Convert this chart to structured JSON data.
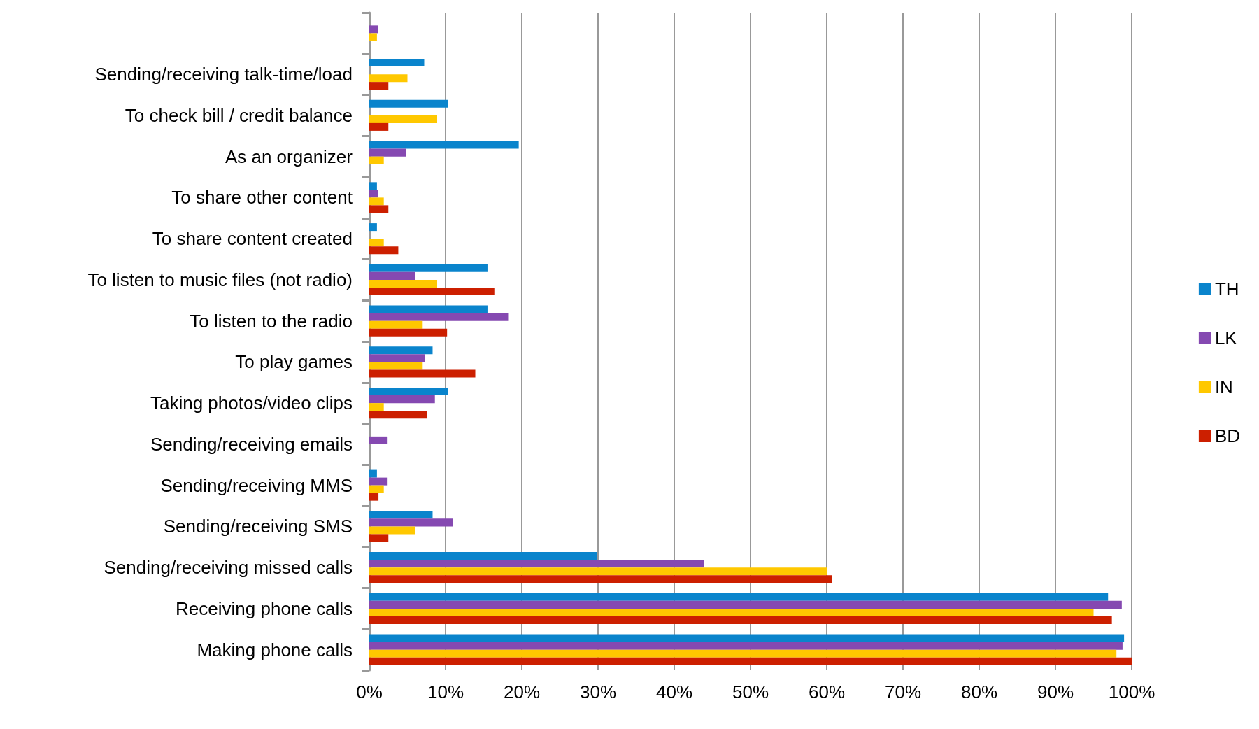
{
  "chart_data": {
    "type": "bar",
    "orientation": "horizontal",
    "categories": [
      null,
      "Sending/receiving talk-time/load",
      "To check bill / credit balance",
      "As an organizer",
      "To share other content",
      "To share content created",
      "To listen to music files (not radio)",
      "To listen to the radio",
      "To play games",
      "Taking photos/video clips",
      "Sending/receiving emails",
      "Sending/receiving MMS",
      "Sending/receiving SMS",
      "Sending/receiving missed calls",
      "Receiving phone calls",
      "Making phone calls"
    ],
    "series": [
      {
        "name": "TH",
        "color": "#0a84cc",
        "values": [
          null,
          7.2,
          10.3,
          19.6,
          1.0,
          1.0,
          15.5,
          15.5,
          8.3,
          10.3,
          null,
          1.0,
          8.3,
          29.9,
          96.9,
          99.0
        ]
      },
      {
        "name": "LK",
        "color": "#8549b1",
        "values": [
          1.1,
          null,
          null,
          4.8,
          1.1,
          null,
          6.0,
          18.3,
          7.3,
          8.6,
          2.4,
          2.4,
          11.0,
          43.9,
          98.7,
          98.8
        ]
      },
      {
        "name": "IN",
        "color": "#ffc800",
        "values": [
          1.0,
          5.0,
          8.9,
          1.9,
          1.9,
          1.9,
          8.9,
          7.0,
          7.0,
          1.9,
          null,
          1.9,
          6.0,
          60.0,
          95.0,
          98.0
        ]
      },
      {
        "name": "BD",
        "color": "#cc1f00",
        "values": [
          null,
          2.5,
          2.5,
          null,
          2.5,
          3.8,
          16.4,
          10.2,
          13.9,
          7.6,
          null,
          1.2,
          2.5,
          60.7,
          97.4,
          100.0
        ]
      }
    ],
    "xlim": [
      0,
      100
    ],
    "xticks": [
      {
        "value": 0,
        "label": "0%"
      },
      {
        "value": 10,
        "label": "10%"
      },
      {
        "value": 20,
        "label": "20%"
      },
      {
        "value": 30,
        "label": "30%"
      },
      {
        "value": 40,
        "label": "40%"
      },
      {
        "value": 50,
        "label": "50%"
      },
      {
        "value": 60,
        "label": "60%"
      },
      {
        "value": 70,
        "label": "70%"
      },
      {
        "value": 80,
        "label": "80%"
      },
      {
        "value": 90,
        "label": "90%"
      },
      {
        "value": 100,
        "label": "100%"
      }
    ],
    "grid": "x",
    "legend": "right"
  }
}
